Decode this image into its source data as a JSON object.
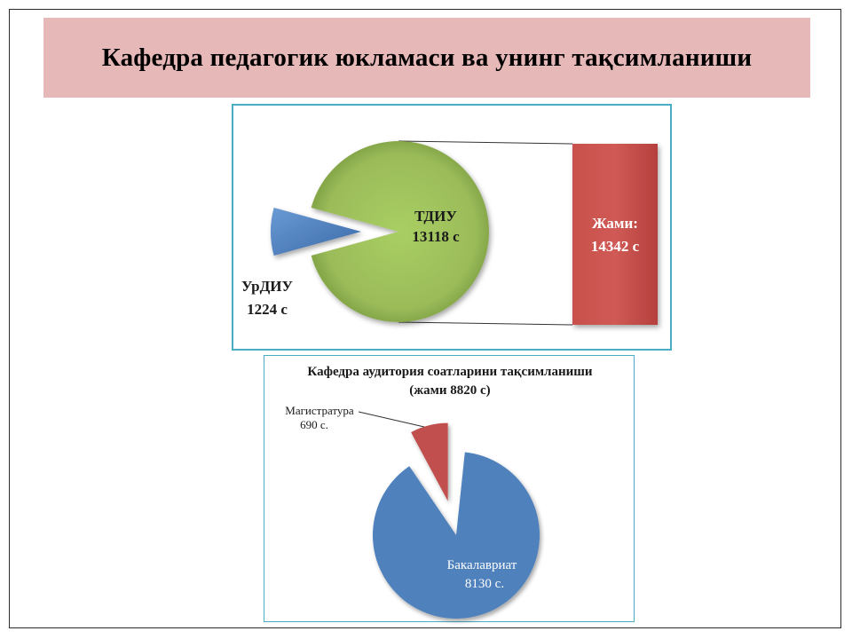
{
  "slide": {
    "title": "Кафедра педагогик юкламаси ва унинг тақсимланиши"
  },
  "chart_data": [
    {
      "type": "pie",
      "variant": "pie-of-bar",
      "title": "",
      "slices": [
        {
          "name": "ТДИУ",
          "value": 13118,
          "unit": "с",
          "label": "ТДИУ",
          "value_label": "13118 с",
          "color": "#9bbb59"
        },
        {
          "name": "УрДИУ",
          "value": 1224,
          "unit": "с",
          "label": "УрДИУ",
          "value_label": "1224 с",
          "color": "#4f81bd"
        }
      ],
      "bar": {
        "label": "Жами:",
        "value_label": "14342 с",
        "value": 14342,
        "color": "#c0504d"
      }
    },
    {
      "type": "pie",
      "title": "Кафедра аудитория соатларини тақсимланиши",
      "subtitle": "(жами 8820 с)",
      "slices": [
        {
          "name": "Бакалавриат",
          "value": 8130,
          "label": "Бакалавриат",
          "value_label": "8130 с.",
          "color": "#4f81bd"
        },
        {
          "name": "Магистратура",
          "value": 690,
          "label": "Магистратура",
          "value_label": "690 с.",
          "color": "#c0504d"
        }
      ]
    }
  ]
}
